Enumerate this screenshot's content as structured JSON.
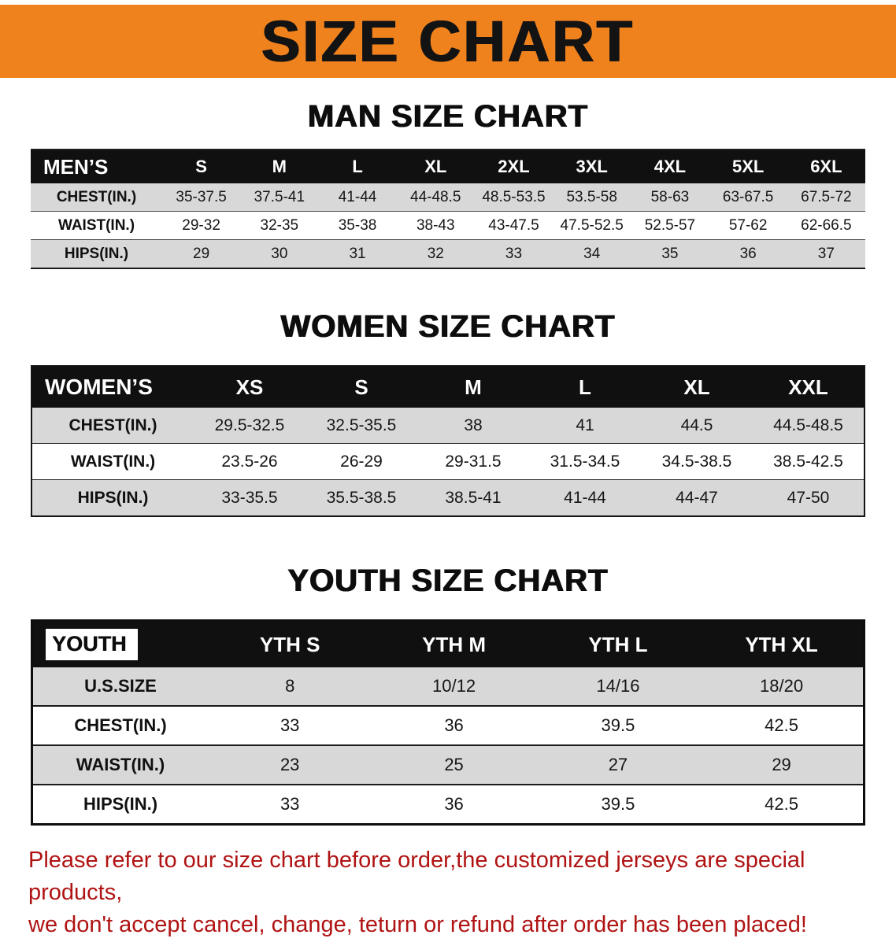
{
  "colors": {
    "banner_orange": "#f0821e",
    "table_header_black": "#101010",
    "row_gray": "#d8d8d8",
    "disclaimer_red": "#b01313"
  },
  "banner": {
    "title": "SIZE CHART"
  },
  "men": {
    "heading": "MAN SIZE CHART",
    "table": {
      "header": [
        "MEN’S",
        "S",
        "M",
        "L",
        "XL",
        "2XL",
        "3XL",
        "4XL",
        "5XL",
        "6XL"
      ],
      "rows": [
        [
          "CHEST(IN.)",
          "35-37.5",
          "37.5-41",
          "41-44",
          "44-48.5",
          "48.5-53.5",
          "53.5-58",
          "58-63",
          "63-67.5",
          "67.5-72"
        ],
        [
          "WAIST(IN.)",
          "29-32",
          "32-35",
          "35-38",
          "38-43",
          "43-47.5",
          "47.5-52.5",
          "52.5-57",
          "57-62",
          "62-66.5"
        ],
        [
          "HIPS(IN.)",
          "29",
          "30",
          "31",
          "32",
          "33",
          "34",
          "35",
          "36",
          "37"
        ]
      ]
    }
  },
  "women": {
    "heading": "WOMEN SIZE CHART",
    "table": {
      "header": [
        "WOMEN’S",
        "XS",
        "S",
        "M",
        "L",
        "XL",
        "XXL"
      ],
      "rows": [
        [
          "CHEST(IN.)",
          "29.5-32.5",
          "32.5-35.5",
          "38",
          "41",
          "44.5",
          "44.5-48.5"
        ],
        [
          "WAIST(IN.)",
          "23.5-26",
          "26-29",
          "29-31.5",
          "31.5-34.5",
          "34.5-38.5",
          "38.5-42.5"
        ],
        [
          "HIPS(IN.)",
          "33-35.5",
          "35.5-38.5",
          "38.5-41",
          "41-44",
          "44-47",
          "47-50"
        ]
      ]
    }
  },
  "youth": {
    "heading": "YOUTH SIZE CHART",
    "table": {
      "header": [
        "YOUTH",
        "YTH S",
        "YTH M",
        "YTH L",
        "YTH XL"
      ],
      "rows": [
        [
          "U.S.SIZE",
          "8",
          "10/12",
          "14/16",
          "18/20"
        ],
        [
          "CHEST(IN.)",
          "33",
          "36",
          "39.5",
          "42.5"
        ],
        [
          "WAIST(IN.)",
          "23",
          "25",
          "27",
          "29"
        ],
        [
          "HIPS(IN.)",
          "33",
          "36",
          "39.5",
          "42.5"
        ]
      ]
    }
  },
  "disclaimer": {
    "line1": "Please refer to our size chart before order,the customized jerseys are special products,",
    "line2": "we don't accept cancel, change, teturn or refund after order has been placed!"
  }
}
